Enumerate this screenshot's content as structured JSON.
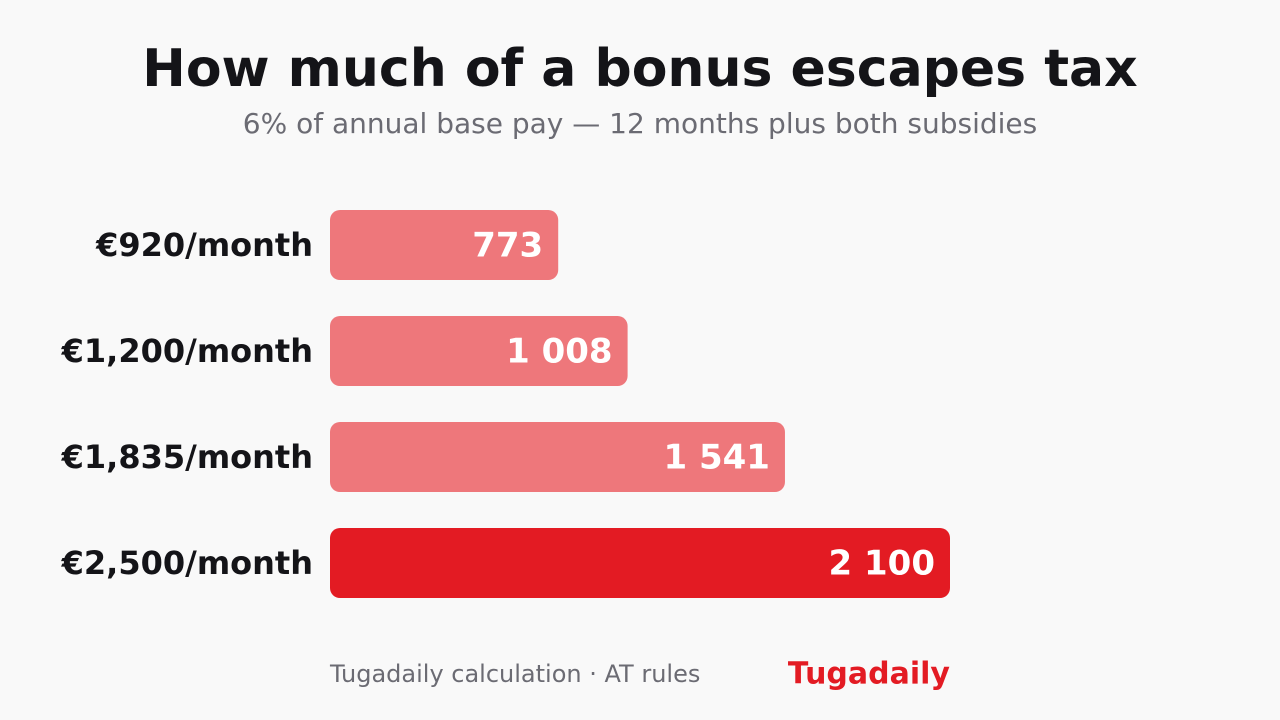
{
  "chart_data": {
    "type": "bar",
    "orientation": "horizontal",
    "title": "How much of a bonus escapes tax",
    "subtitle": "6% of annual base pay — 12 months plus both subsidies",
    "categories": [
      "€920/month",
      "€1,200/month",
      "€1,835/month",
      "€2,500/month"
    ],
    "values": [
      773,
      1008,
      1541,
      2100
    ],
    "value_labels": [
      "773",
      "1 008",
      "1 541",
      "2 100"
    ],
    "colors": [
      "#ee777b",
      "#ee777b",
      "#ee777b",
      "#e31b23"
    ],
    "source": "Tugadaily calculation · AT rules",
    "brand": "Tugadaily"
  }
}
